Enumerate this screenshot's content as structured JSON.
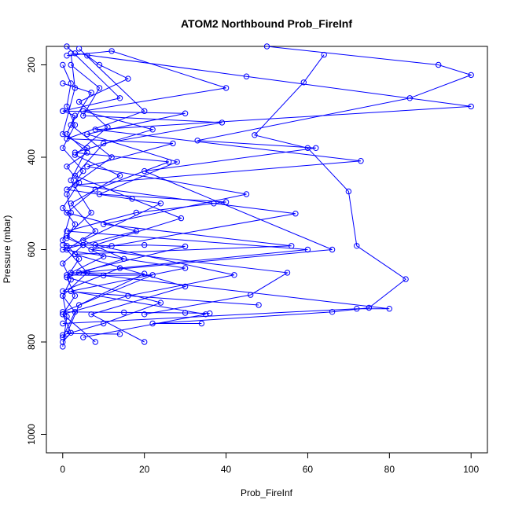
{
  "chart_data": {
    "type": "line",
    "title": "ATOM2 Northbound Prob_FireInf",
    "xlabel": "Prob_FireInf",
    "ylabel": "Pressure (mbar)",
    "xlim": [
      -4,
      104
    ],
    "ylim": [
      1040,
      160
    ],
    "y_reversed": true,
    "x_ticks": [
      0,
      20,
      40,
      60,
      80,
      100
    ],
    "y_ticks": [
      200,
      400,
      600,
      800,
      1000
    ],
    "grid": false,
    "legend": "none",
    "marker": "open-circle",
    "series": [
      {
        "points": [
          [
            0,
            200
          ],
          [
            2,
            240
          ],
          [
            1,
            290
          ],
          [
            3,
            330
          ],
          [
            0,
            380
          ],
          [
            5,
            430
          ],
          [
            1,
            480
          ],
          [
            2,
            520
          ],
          [
            0,
            580
          ],
          [
            4,
            620
          ],
          [
            1,
            660
          ],
          [
            3,
            700
          ],
          [
            0,
            740
          ],
          [
            2,
            780
          ],
          [
            0,
            800
          ]
        ]
      },
      {
        "points": [
          [
            1,
            180
          ],
          [
            12,
            170
          ],
          [
            40,
            250
          ],
          [
            5,
            300
          ],
          [
            22,
            340
          ],
          [
            3,
            390
          ],
          [
            26,
            410
          ],
          [
            8,
            470
          ],
          [
            1,
            520
          ],
          [
            18,
            560
          ],
          [
            0,
            600
          ],
          [
            30,
            640
          ],
          [
            2,
            690
          ],
          [
            35,
            740
          ],
          [
            5,
            790
          ]
        ]
      },
      {
        "points": [
          [
            50,
            160
          ],
          [
            92,
            200
          ],
          [
            100,
            222
          ],
          [
            85,
            272
          ],
          [
            33,
            364
          ],
          [
            62,
            380
          ],
          [
            20,
            430
          ],
          [
            66,
            600
          ],
          [
            4,
            650
          ],
          [
            80,
            728
          ],
          [
            72,
            728
          ],
          [
            0,
            760
          ]
        ]
      },
      {
        "points": [
          [
            3,
            175
          ],
          [
            45,
            225
          ],
          [
            100,
            290
          ],
          [
            8,
            340
          ],
          [
            73,
            408
          ],
          [
            3,
            460
          ],
          [
            37,
            500
          ],
          [
            57,
            522
          ],
          [
            7,
            600
          ],
          [
            55,
            650
          ],
          [
            46,
            698
          ],
          [
            20,
            740
          ]
        ]
      },
      {
        "points": [
          [
            64,
            178
          ],
          [
            59,
            238
          ],
          [
            47,
            352
          ],
          [
            60,
            380
          ],
          [
            70,
            474
          ],
          [
            72,
            592
          ],
          [
            84,
            664
          ],
          [
            75,
            726
          ],
          [
            66,
            735
          ],
          [
            22,
            760
          ],
          [
            34,
            760
          ]
        ]
      },
      {
        "points": [
          [
            1,
            160
          ],
          [
            14,
            272
          ],
          [
            0,
            300
          ],
          [
            30,
            305
          ],
          [
            6,
            350
          ],
          [
            28,
            410
          ],
          [
            9,
            480
          ],
          [
            40,
            497
          ],
          [
            18,
            520
          ],
          [
            1,
            560
          ],
          [
            60,
            600
          ],
          [
            14,
            640
          ],
          [
            0,
            690
          ],
          [
            48,
            720
          ]
        ]
      },
      {
        "points": [
          [
            2,
            200
          ],
          [
            9,
            250
          ],
          [
            5,
            310
          ],
          [
            39,
            325
          ],
          [
            10,
            370
          ],
          [
            3,
            440
          ],
          [
            17,
            490
          ],
          [
            29,
            532
          ],
          [
            8,
            590
          ],
          [
            42,
            655
          ],
          [
            16,
            700
          ],
          [
            0,
            740
          ],
          [
            8,
            800
          ]
        ]
      },
      {
        "points": [
          [
            4,
            165
          ],
          [
            20,
            300
          ],
          [
            1,
            360
          ],
          [
            27,
            370
          ],
          [
            6,
            420
          ],
          [
            45,
            480
          ],
          [
            10,
            545
          ],
          [
            56,
            592
          ],
          [
            3,
            610
          ],
          [
            30,
            680
          ],
          [
            7,
            740
          ],
          [
            20,
            800
          ]
        ]
      },
      {
        "points": [
          [
            0,
            240
          ],
          [
            7,
            260
          ],
          [
            2,
            330
          ],
          [
            12,
            400
          ],
          [
            1,
            470
          ],
          [
            24,
            500
          ],
          [
            5,
            580
          ],
          [
            15,
            620
          ],
          [
            1,
            660
          ],
          [
            24,
            715
          ],
          [
            10,
            760
          ],
          [
            0,
            785
          ]
        ]
      },
      {
        "points": [
          [
            6,
            180
          ],
          [
            9,
            200
          ],
          [
            16,
            230
          ],
          [
            4,
            280
          ],
          [
            11,
            335
          ],
          [
            3,
            395
          ],
          [
            14,
            440
          ],
          [
            2,
            500
          ],
          [
            8,
            560
          ],
          [
            1,
            600
          ],
          [
            6,
            650
          ],
          [
            0,
            700
          ],
          [
            3,
            735
          ],
          [
            0,
            790
          ]
        ]
      },
      {
        "points": [
          [
            0,
            300
          ],
          [
            3,
            310
          ],
          [
            1,
            350
          ],
          [
            6,
            390
          ],
          [
            1,
            420
          ],
          [
            4,
            455
          ],
          [
            0,
            510
          ],
          [
            3,
            545
          ],
          [
            1,
            575
          ],
          [
            5,
            590
          ],
          [
            0,
            630
          ],
          [
            2,
            665
          ],
          [
            0,
            700
          ],
          [
            1,
            745
          ],
          [
            0,
            810
          ]
        ]
      },
      {
        "points": [
          [
            2,
            175
          ],
          [
            3,
            250
          ],
          [
            0,
            350
          ],
          [
            6,
            380
          ],
          [
            2,
            450
          ],
          [
            7,
            520
          ],
          [
            1,
            570
          ],
          [
            10,
            615
          ],
          [
            2,
            650
          ],
          [
            20,
            652
          ],
          [
            4,
            720
          ],
          [
            1,
            782
          ],
          [
            14,
            783
          ]
        ]
      },
      {
        "points": [
          [
            0,
            590
          ],
          [
            1,
            592
          ],
          [
            5,
            590
          ],
          [
            12,
            592
          ],
          [
            20,
            590
          ],
          [
            30,
            593
          ],
          [
            1,
            655
          ],
          [
            10,
            656
          ],
          [
            22,
            655
          ],
          [
            0,
            735
          ],
          [
            15,
            736
          ],
          [
            30,
            737
          ],
          [
            36,
            738
          ]
        ]
      }
    ]
  }
}
